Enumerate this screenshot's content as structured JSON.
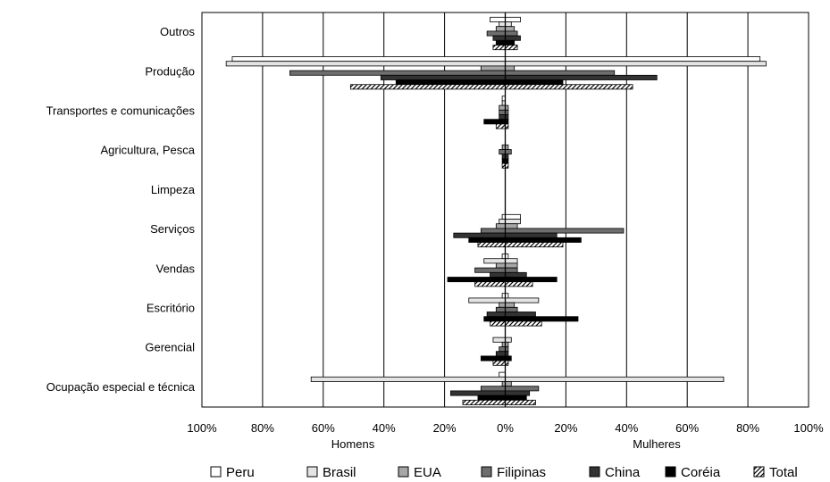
{
  "chart_data": {
    "type": "bar",
    "orientation": "horizontal-butterfly",
    "title": "",
    "xlabel_left": "Homens",
    "xlabel_right": "Mulheres",
    "xlim": [
      -100,
      100
    ],
    "x_ticks": [
      -100,
      -80,
      -60,
      -40,
      -20,
      0,
      20,
      40,
      60,
      80,
      100
    ],
    "x_tick_labels": [
      "100%",
      "80%",
      "60%",
      "40%",
      "20%",
      "0%",
      "20%",
      "40%",
      "60%",
      "80%",
      "100%"
    ],
    "grid": "vertical",
    "legend_position": "bottom",
    "categories": [
      "Outros",
      "Produção",
      "Transportes e comunicações",
      "Agricultura, Pesca",
      "Limpeza",
      "Serviços",
      "Vendas",
      "Escritório",
      "Gerencial",
      "Ocupação especial e técnica"
    ],
    "series": [
      {
        "name": "Peru",
        "fill": "#ffffff",
        "pattern": "none",
        "men": [
          5,
          90,
          1,
          0,
          0,
          1,
          1,
          1,
          0,
          2
        ],
        "women": [
          5,
          84,
          0,
          0,
          0,
          5,
          1,
          1,
          0,
          0
        ]
      },
      {
        "name": "Brasil",
        "fill": "#e4e4e4",
        "pattern": "none",
        "men": [
          2,
          92,
          1,
          0,
          0,
          2,
          7,
          12,
          4,
          64
        ],
        "women": [
          2,
          86,
          0,
          0,
          0,
          5,
          4,
          11,
          2,
          72
        ]
      },
      {
        "name": "EUA",
        "fill": "#a6a6a6",
        "pattern": "none",
        "men": [
          3,
          8,
          2,
          1,
          0,
          3,
          3,
          2,
          1,
          1
        ],
        "women": [
          3,
          3,
          1,
          1,
          0,
          4,
          4,
          3,
          1,
          2
        ]
      },
      {
        "name": "Filipinas",
        "fill": "#6e6e6e",
        "pattern": "none",
        "men": [
          6,
          71,
          2,
          2,
          0,
          8,
          10,
          3,
          2,
          8
        ],
        "women": [
          4,
          36,
          1,
          2,
          0,
          39,
          4,
          4,
          1,
          11
        ]
      },
      {
        "name": "China",
        "fill": "#333333",
        "pattern": "none",
        "men": [
          4,
          41,
          2,
          1,
          0,
          17,
          5,
          6,
          3,
          18
        ],
        "women": [
          5,
          50,
          1,
          1,
          0,
          17,
          7,
          10,
          1,
          8
        ]
      },
      {
        "name": "Coréia",
        "fill": "#000000",
        "pattern": "none",
        "men": [
          3,
          36,
          7,
          1,
          0,
          12,
          19,
          7,
          8,
          9
        ],
        "women": [
          3,
          19,
          1,
          1,
          0,
          25,
          17,
          24,
          2,
          7
        ]
      },
      {
        "name": "Total",
        "fill": "#ffffff",
        "pattern": "hatch",
        "men": [
          4,
          51,
          3,
          1,
          0,
          9,
          10,
          5,
          4,
          14
        ],
        "women": [
          4,
          42,
          1,
          1,
          0,
          19,
          9,
          12,
          1,
          10
        ]
      }
    ]
  }
}
